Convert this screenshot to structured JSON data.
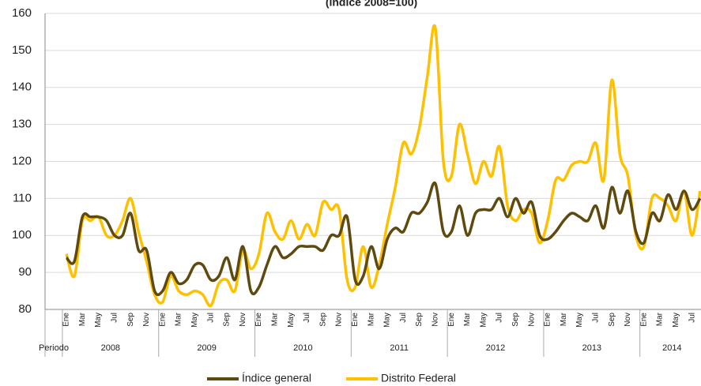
{
  "chart_data": {
    "type": "line",
    "title": "(índice 2008=100)",
    "x_group_header": "Periodo",
    "year_groups": [
      "2008",
      "2009",
      "2010",
      "2011",
      "2012",
      "2013",
      "2014"
    ],
    "categories": [
      "Ene",
      null,
      "Mar",
      null,
      "May",
      null,
      "Jul",
      null,
      "Sep",
      null,
      "Nov",
      null,
      "Ene",
      null,
      "Mar",
      null,
      "May",
      null,
      "Jul",
      null,
      "Sep",
      null,
      "Nov",
      null,
      "Ene",
      null,
      "Mar",
      null,
      "May",
      null,
      "Jul",
      null,
      "Sep",
      null,
      "Nov",
      null,
      "Ene",
      null,
      "Mar",
      null,
      "May",
      null,
      "Jul",
      null,
      "Sep",
      null,
      "Nov",
      null,
      "Ene",
      null,
      "Mar",
      null,
      "May",
      null,
      "Jul",
      null,
      "Sep",
      null,
      "Nov",
      null,
      "Ene",
      null,
      "Mar",
      null,
      "May",
      null,
      "Jul",
      null,
      "Sep",
      null,
      "Nov",
      null,
      "Ene",
      null,
      "Mar",
      null,
      "May",
      null,
      "Jul",
      null
    ],
    "series": [
      {
        "name": "Índice general",
        "color": "#5e4a0e",
        "values": [
          94,
          93,
          105,
          105,
          105,
          104,
          100,
          100,
          106,
          96,
          96,
          85,
          85,
          90,
          87,
          88,
          92,
          92,
          88,
          89,
          94,
          88,
          97,
          85,
          86,
          92,
          97,
          94,
          95,
          97,
          97,
          97,
          96,
          100,
          100,
          105,
          88,
          89,
          97,
          91,
          99,
          102,
          101,
          106,
          106,
          109,
          114,
          101,
          101,
          108,
          100,
          106,
          107,
          107,
          110,
          105,
          110,
          106,
          109,
          100,
          99,
          101,
          104,
          106,
          105,
          104,
          108,
          102,
          113,
          106,
          112,
          101,
          98,
          106,
          104,
          111,
          107,
          112,
          107,
          110
        ]
      },
      {
        "name": "Distrito Federal",
        "color": "#ffc000",
        "values": [
          95,
          89,
          104,
          104,
          105,
          100,
          100,
          104,
          110,
          101,
          93,
          84,
          82,
          89,
          85,
          84,
          85,
          84,
          81,
          87,
          88,
          85,
          96,
          91,
          95,
          106,
          101,
          99,
          104,
          99,
          103,
          100,
          109,
          107,
          107,
          88,
          86,
          97,
          86,
          92,
          103,
          113,
          125,
          122,
          129,
          143,
          156,
          120,
          116,
          130,
          122,
          114,
          120,
          116,
          124,
          108,
          104,
          107,
          106,
          98,
          104,
          115,
          115,
          119,
          120,
          120,
          125,
          115,
          142,
          122,
          116,
          100,
          97,
          110,
          110,
          108,
          104,
          112,
          100,
          112
        ]
      }
    ],
    "ylim": [
      80,
      160
    ],
    "yticks": [
      80,
      90,
      100,
      110,
      120,
      130,
      140,
      150,
      160
    ],
    "grid": true
  }
}
